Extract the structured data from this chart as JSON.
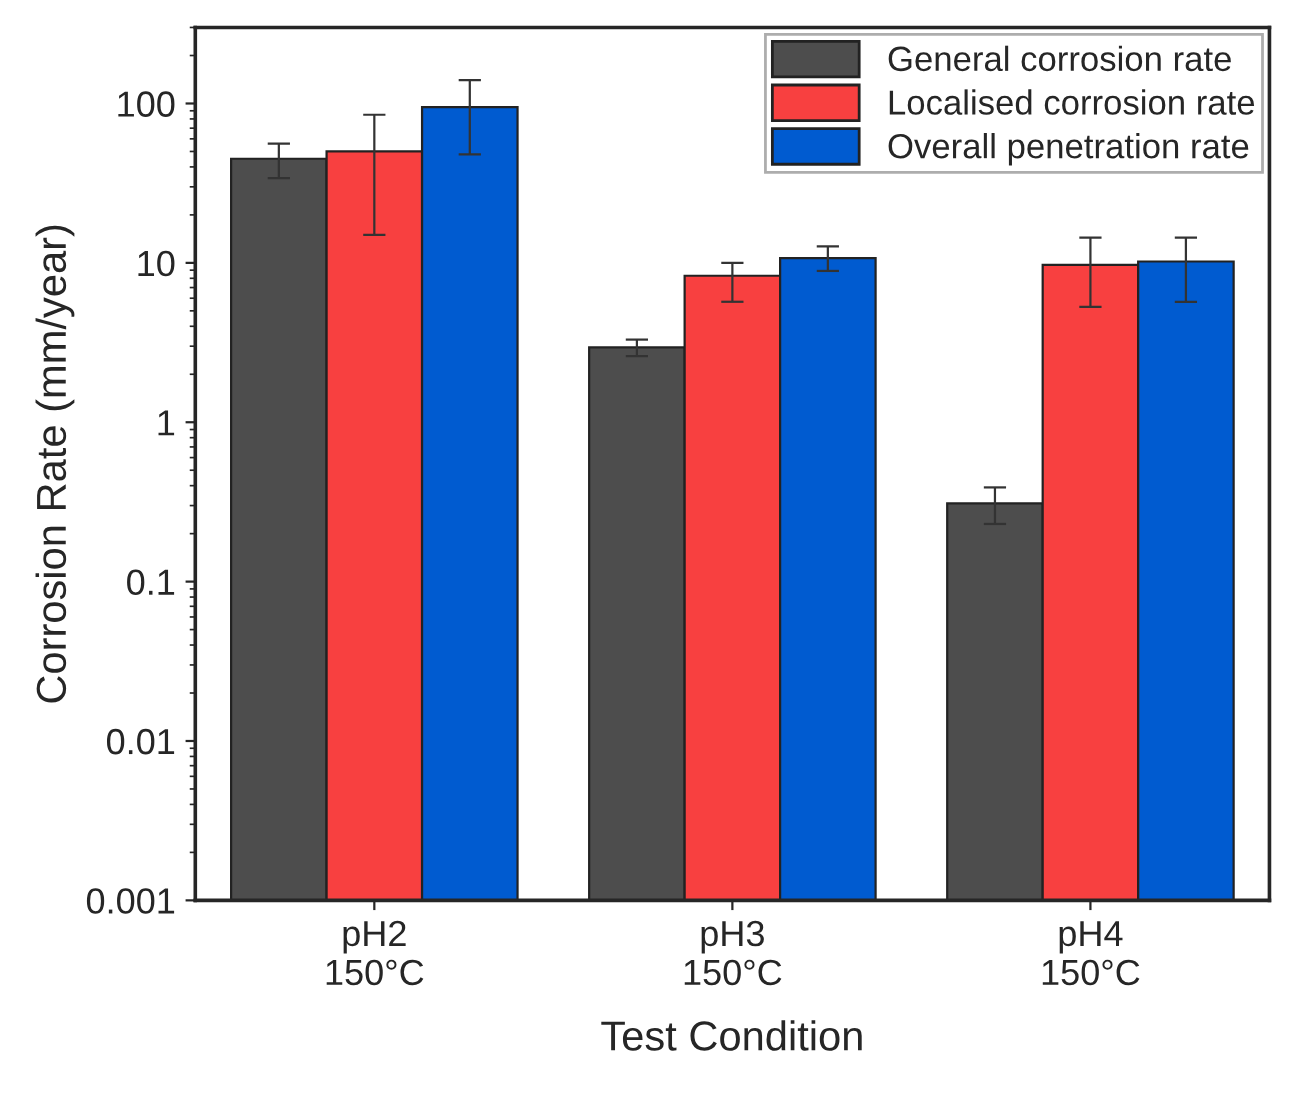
{
  "chart_data": {
    "type": "bar",
    "xlabel": "Test Condition",
    "ylabel": "Corrosion Rate (mm/year)",
    "categories": [
      "pH2\n150°C",
      "pH3\n150°C",
      "pH4\n150°C"
    ],
    "log": true,
    "ylim": [
      0.001,
      300
    ],
    "yticks": [
      0.001,
      0.01,
      0.1,
      1,
      10,
      100
    ],
    "grid": false,
    "legend": "top right",
    "series": [
      {
        "name": "General corrosion rate",
        "color": "#4d4d4d",
        "values": [
          45,
          2.95,
          0.31
        ],
        "errors": [
          [
            34,
            56
          ],
          [
            2.6,
            3.3
          ],
          [
            0.23,
            0.39
          ]
        ]
      },
      {
        "name": "Localised corrosion rate",
        "color": "#f84040",
        "values": [
          50,
          8.3,
          9.7
        ],
        "errors": [
          [
            15,
            85
          ],
          [
            5.7,
            10
          ],
          [
            5.3,
            14.4
          ]
        ]
      },
      {
        "name": "Overall penetration rate",
        "color": "#005bd0",
        "values": [
          95,
          10.7,
          10.2
        ],
        "errors": [
          [
            48,
            140
          ],
          [
            8.9,
            12.7
          ],
          [
            5.7,
            14.4
          ]
        ]
      }
    ]
  }
}
